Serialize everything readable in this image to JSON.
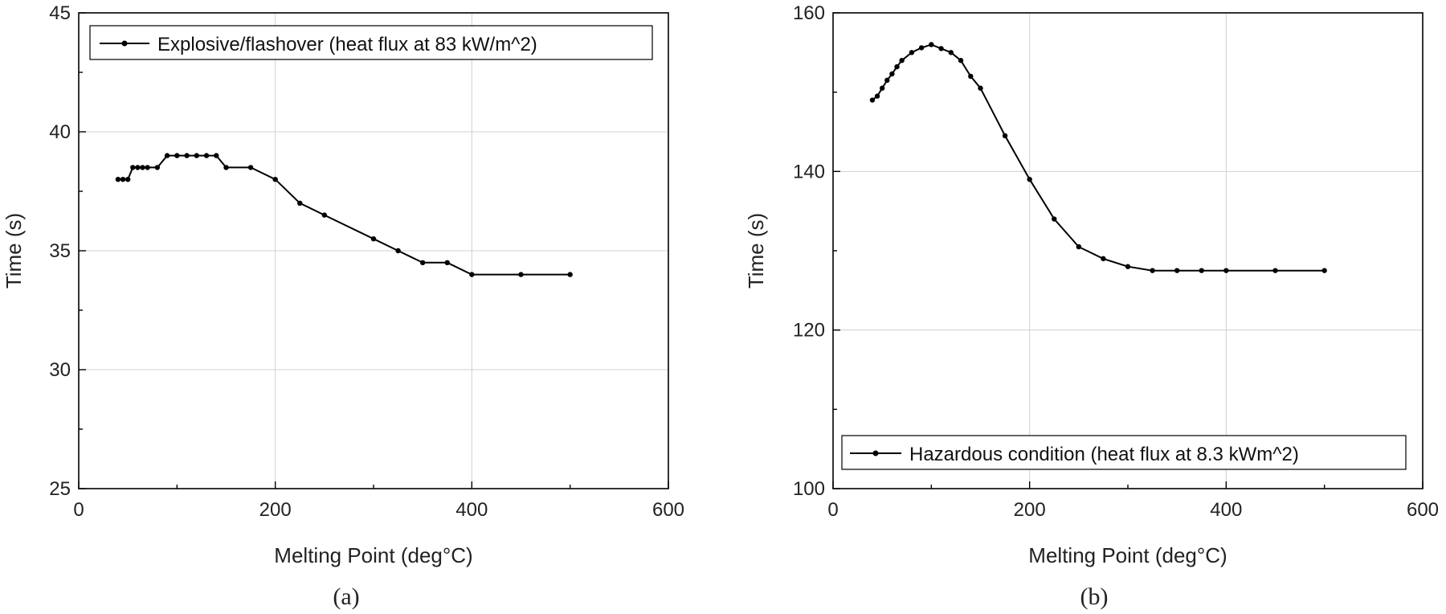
{
  "chart_data": [
    {
      "type": "line",
      "panel_label": "(a)",
      "xlabel": "Melting Point (deg°C)",
      "ylabel": "Time (s)",
      "xlim": [
        0,
        600
      ],
      "ylim": [
        25,
        45
      ],
      "xticks": [
        "0",
        "200",
        "400",
        "600"
      ],
      "yticks": [
        "25",
        "30",
        "35",
        "40",
        "45"
      ],
      "grid": true,
      "legend_position": "top-left",
      "series": [
        {
          "name": "Explosive/flashover (heat flux at 83 kW/m^2)",
          "x": [
            40,
            45,
            50,
            55,
            60,
            65,
            70,
            80,
            90,
            100,
            110,
            120,
            130,
            140,
            150,
            175,
            200,
            225,
            250,
            300,
            325,
            350,
            375,
            400,
            450,
            500
          ],
          "y": [
            38,
            38,
            38,
            38.5,
            38.5,
            38.5,
            38.5,
            38.5,
            39,
            39,
            39,
            39,
            39,
            39,
            38.5,
            38.5,
            38,
            37,
            36.5,
            35.5,
            35,
            34.5,
            34.5,
            34,
            34,
            34
          ]
        }
      ]
    },
    {
      "type": "line",
      "panel_label": "(b)",
      "xlabel": "Melting Point (deg°C)",
      "ylabel": "Time (s)",
      "xlim": [
        0,
        600
      ],
      "ylim": [
        100,
        160
      ],
      "xticks": [
        "0",
        "200",
        "400",
        "600"
      ],
      "yticks": [
        "100",
        "120",
        "140",
        "160"
      ],
      "grid": true,
      "legend_position": "bottom-left",
      "series": [
        {
          "name": "Hazardous condition (heat flux at 8.3 kWm^2)",
          "x": [
            40,
            45,
            50,
            55,
            60,
            65,
            70,
            80,
            90,
            100,
            110,
            120,
            130,
            140,
            150,
            175,
            200,
            225,
            250,
            275,
            300,
            325,
            350,
            375,
            400,
            450,
            500
          ],
          "y": [
            149,
            149.5,
            150.5,
            151.5,
            152.3,
            153.2,
            154,
            155,
            155.6,
            156,
            155.5,
            155,
            154,
            152,
            150.5,
            144.5,
            139,
            134,
            130.5,
            129,
            128,
            127.5,
            127.5,
            127.5,
            127.5,
            127.5,
            127.5
          ]
        }
      ]
    }
  ]
}
